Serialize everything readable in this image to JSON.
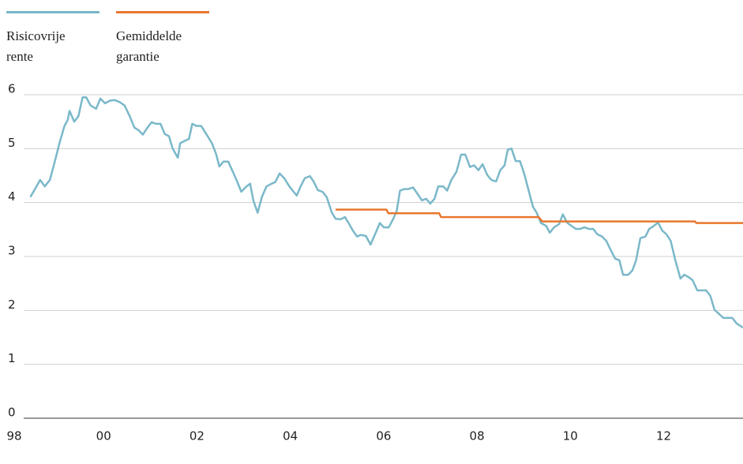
{
  "chart_data": {
    "type": "line",
    "xlim": [
      1997.78,
      2013.7
    ],
    "ylim": [
      0,
      6
    ],
    "xticks": [
      {
        "value": 1998,
        "label": "98"
      },
      {
        "value": 2000,
        "label": "00"
      },
      {
        "value": 2002,
        "label": "02"
      },
      {
        "value": 2004,
        "label": "04"
      },
      {
        "value": 2006,
        "label": "06"
      },
      {
        "value": 2008,
        "label": "08"
      },
      {
        "value": 2010,
        "label": "10"
      },
      {
        "value": 2012,
        "label": "12"
      }
    ],
    "yticks": [
      0,
      1,
      2,
      3,
      4,
      5,
      6
    ],
    "grid": true,
    "legend": "top-left",
    "series": [
      {
        "name": "Risicovrije rente",
        "color": "#7ab8c9",
        "x": [
          1998.43,
          1998.53,
          1998.64,
          1998.74,
          1998.85,
          1998.95,
          1999.06,
          1999.16,
          1999.23,
          1999.27,
          1999.37,
          1999.46,
          1999.55,
          1999.63,
          1999.72,
          1999.84,
          1999.93,
          2000.03,
          2000.14,
          2000.24,
          2000.35,
          2000.45,
          2000.56,
          2000.66,
          2000.75,
          2000.84,
          2000.94,
          2001.03,
          2001.12,
          2001.22,
          2001.31,
          2001.4,
          2001.48,
          2001.59,
          2001.64,
          2001.75,
          2001.83,
          2001.9,
          2001.99,
          2002.09,
          2002.2,
          2002.32,
          2002.41,
          2002.48,
          2002.57,
          2002.67,
          2002.77,
          2002.86,
          2002.95,
          2003.05,
          2003.14,
          2003.21,
          2003.3,
          2003.39,
          2003.49,
          2003.6,
          2003.68,
          2003.77,
          2003.87,
          2003.98,
          2004.07,
          2004.14,
          2004.22,
          2004.31,
          2004.42,
          2004.5,
          2004.59,
          2004.69,
          2004.78,
          2004.89,
          2004.97,
          2005.08,
          2005.17,
          2005.25,
          2005.34,
          2005.43,
          2005.51,
          2005.62,
          2005.72,
          2005.81,
          2005.92,
          2006.0,
          2006.11,
          2006.2,
          2006.28,
          2006.35,
          2006.44,
          2006.53,
          2006.63,
          2006.72,
          2006.82,
          2006.91,
          2007.0,
          2007.09,
          2007.17,
          2007.28,
          2007.36,
          2007.45,
          2007.56,
          2007.66,
          2007.75,
          2007.85,
          2007.94,
          2008.03,
          2008.12,
          2008.22,
          2008.31,
          2008.41,
          2008.5,
          2008.59,
          2008.66,
          2008.74,
          2008.83,
          2008.92,
          2009.01,
          2009.09,
          2009.2,
          2009.28,
          2009.37,
          2009.48,
          2009.56,
          2009.65,
          2009.76,
          2009.84,
          2009.93,
          2010.02,
          2010.12,
          2010.21,
          2010.3,
          2010.4,
          2010.49,
          2010.58,
          2010.68,
          2010.77,
          2010.86,
          2010.96,
          2011.05,
          2011.13,
          2011.24,
          2011.33,
          2011.41,
          2011.5,
          2011.61,
          2011.69,
          2011.78,
          2011.88,
          2011.97,
          2012.06,
          2012.15,
          2012.25,
          2012.36,
          2012.44,
          2012.53,
          2012.62,
          2012.72,
          2012.81,
          2012.91,
          2013.0,
          2013.09,
          2013.19,
          2013.28,
          2013.37,
          2013.47,
          2013.56,
          2013.7
        ],
        "values": [
          4.1,
          4.25,
          4.42,
          4.3,
          4.42,
          4.75,
          5.12,
          5.42,
          5.53,
          5.7,
          5.5,
          5.6,
          5.95,
          5.95,
          5.8,
          5.74,
          5.93,
          5.84,
          5.89,
          5.9,
          5.86,
          5.8,
          5.6,
          5.39,
          5.34,
          5.26,
          5.39,
          5.49,
          5.46,
          5.46,
          5.27,
          5.23,
          5.0,
          4.83,
          5.1,
          5.15,
          5.18,
          5.46,
          5.42,
          5.42,
          5.27,
          5.1,
          4.9,
          4.67,
          4.76,
          4.76,
          4.57,
          4.39,
          4.2,
          4.29,
          4.35,
          4.03,
          3.81,
          4.1,
          4.3,
          4.35,
          4.38,
          4.54,
          4.45,
          4.3,
          4.2,
          4.13,
          4.3,
          4.45,
          4.49,
          4.39,
          4.23,
          4.2,
          4.1,
          3.81,
          3.7,
          3.69,
          3.73,
          3.62,
          3.48,
          3.37,
          3.4,
          3.38,
          3.22,
          3.4,
          3.62,
          3.54,
          3.54,
          3.69,
          3.84,
          4.22,
          4.25,
          4.25,
          4.28,
          4.17,
          4.04,
          4.07,
          3.98,
          4.07,
          4.3,
          4.3,
          4.22,
          4.42,
          4.57,
          4.89,
          4.89,
          4.66,
          4.69,
          4.6,
          4.71,
          4.51,
          4.42,
          4.39,
          4.6,
          4.69,
          4.98,
          5.0,
          4.77,
          4.77,
          4.54,
          4.28,
          3.92,
          3.81,
          3.62,
          3.57,
          3.44,
          3.54,
          3.6,
          3.78,
          3.63,
          3.57,
          3.51,
          3.51,
          3.54,
          3.51,
          3.51,
          3.41,
          3.37,
          3.29,
          3.13,
          2.96,
          2.93,
          2.66,
          2.66,
          2.74,
          2.93,
          3.34,
          3.37,
          3.51,
          3.56,
          3.63,
          3.48,
          3.41,
          3.29,
          2.93,
          2.59,
          2.66,
          2.62,
          2.56,
          2.37,
          2.37,
          2.37,
          2.27,
          2.01,
          1.93,
          1.86,
          1.86,
          1.86,
          1.76,
          1.68
        ]
      },
      {
        "name": "Gemiddelde garantie",
        "color": "#e8772e",
        "x": [
          2004.97,
          2006.06,
          2006.1,
          2007.19,
          2007.23,
          2009.32,
          2009.4,
          2012.67,
          2012.7,
          2013.7
        ],
        "values": [
          3.87,
          3.87,
          3.8,
          3.8,
          3.73,
          3.73,
          3.65,
          3.65,
          3.62,
          3.62
        ]
      }
    ]
  }
}
